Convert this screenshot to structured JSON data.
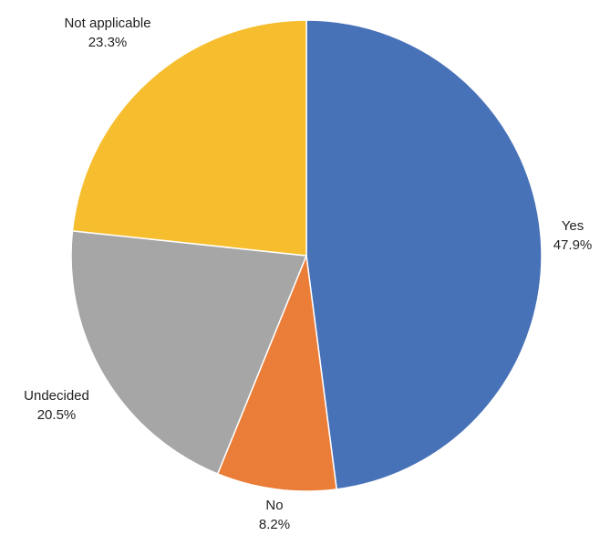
{
  "chart_data": {
    "type": "pie",
    "title": "",
    "start_angle_deg": 0,
    "direction": "clockwise",
    "slices": [
      {
        "label": "Yes",
        "value": 47.9,
        "value_label": "47.9%",
        "color": "#4872B8"
      },
      {
        "label": "No",
        "value": 8.2,
        "value_label": "8.2%",
        "color": "#EA7D38"
      },
      {
        "label": "Undecided",
        "value": 20.5,
        "value_label": "20.5%",
        "color": "#A5A6A5"
      },
      {
        "label": "Not applicable",
        "value": 23.3,
        "value_label": "23.3%",
        "color": "#F6BE2E"
      }
    ]
  }
}
